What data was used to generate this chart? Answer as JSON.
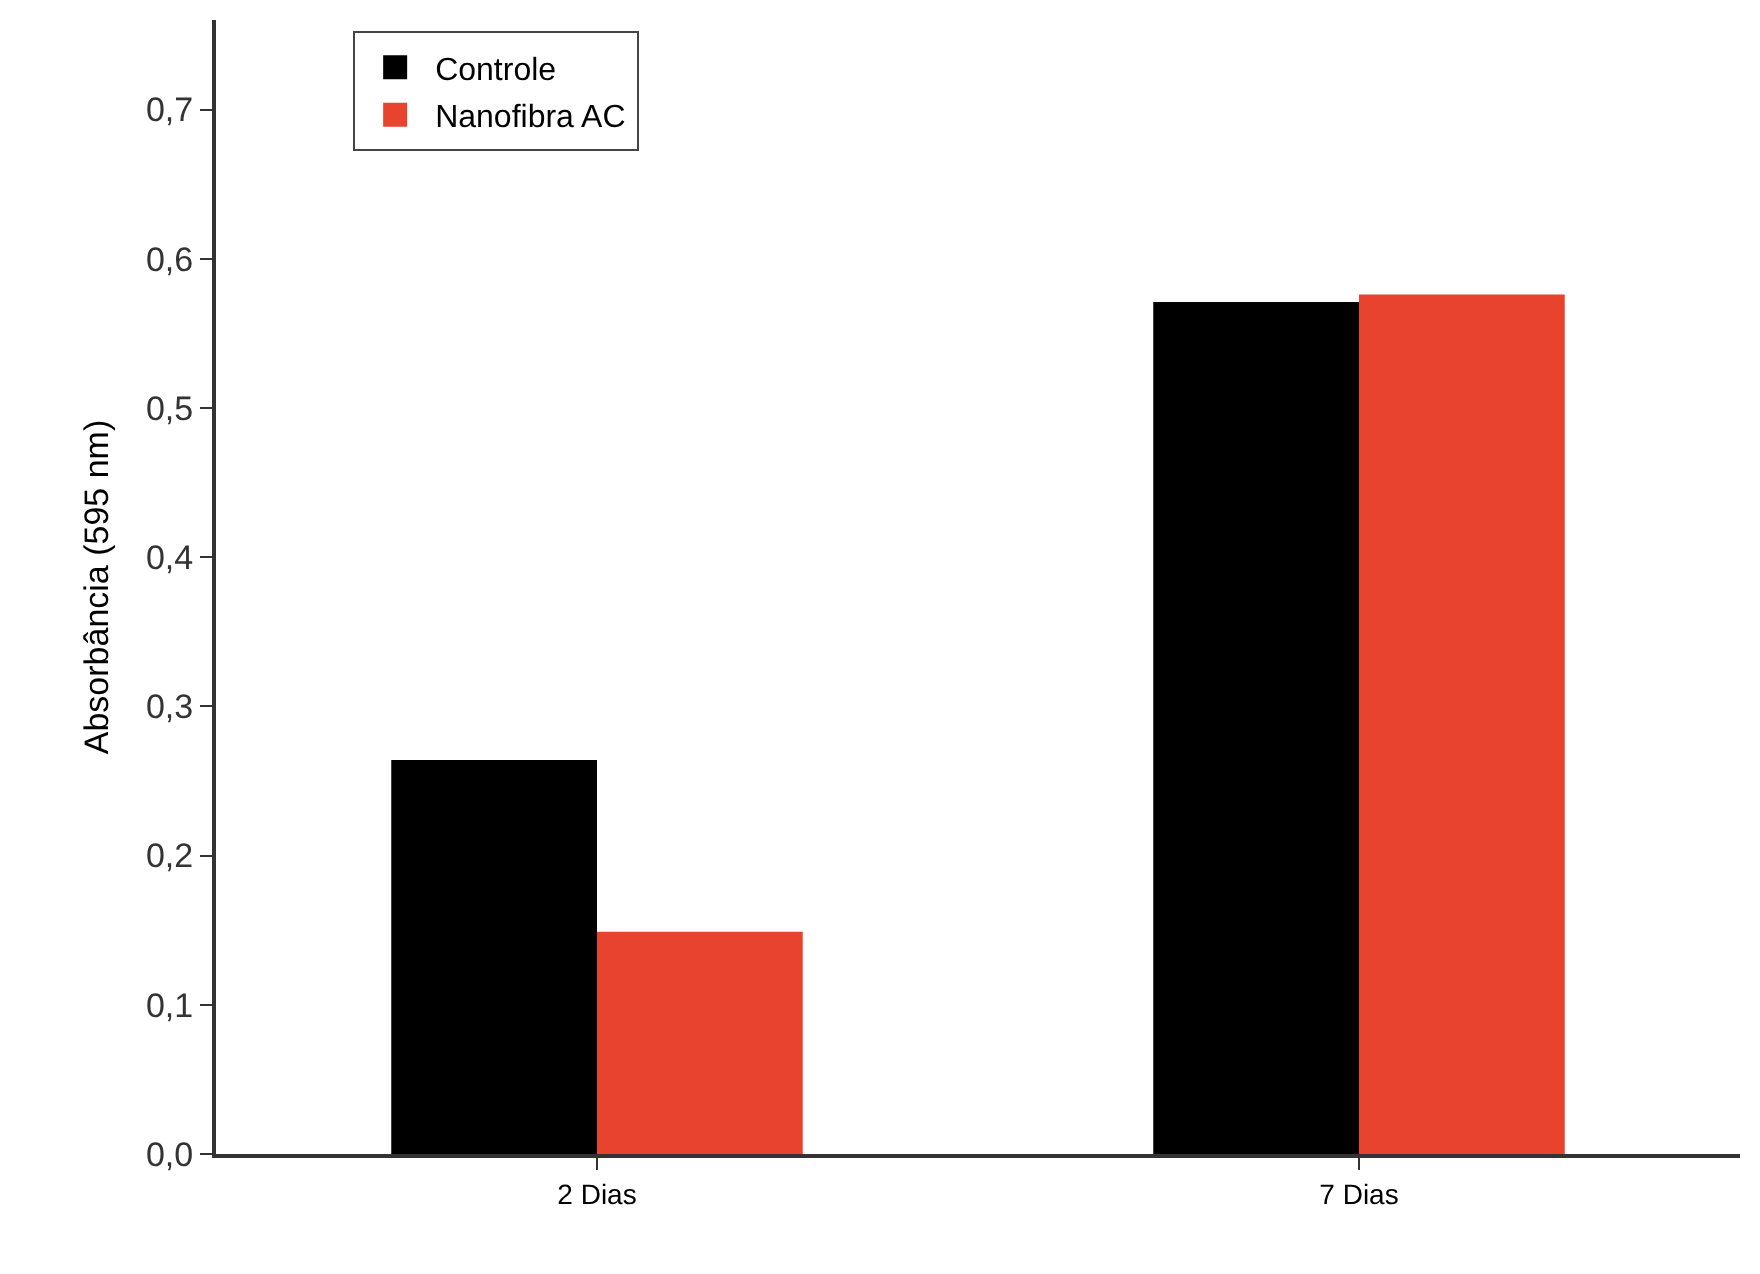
{
  "chart_data": {
    "type": "bar",
    "ylabel": "Absorbância (595 nm)",
    "categories": [
      "2 Dias",
      "7 Dias"
    ],
    "series": [
      {
        "name": "Controle",
        "color": "#000000",
        "values": [
          0.264,
          0.571
        ]
      },
      {
        "name": "Nanofibra AC",
        "color": "#e8432e",
        "values": [
          0.149,
          0.576
        ]
      }
    ],
    "ylim": [
      0,
      0.76
    ],
    "yticks": [
      {
        "value": 0,
        "label": "0,0"
      },
      {
        "value": 0.1,
        "label": "0,1"
      },
      {
        "value": 0.2,
        "label": "0,2"
      },
      {
        "value": 0.3,
        "label": "0,3"
      },
      {
        "value": 0.4,
        "label": "0,4"
      },
      {
        "value": 0.5,
        "label": "0,5"
      },
      {
        "value": 0.6,
        "label": "0,6"
      },
      {
        "value": 0.7,
        "label": "0,7"
      }
    ],
    "grid": false,
    "legend": "top left"
  }
}
